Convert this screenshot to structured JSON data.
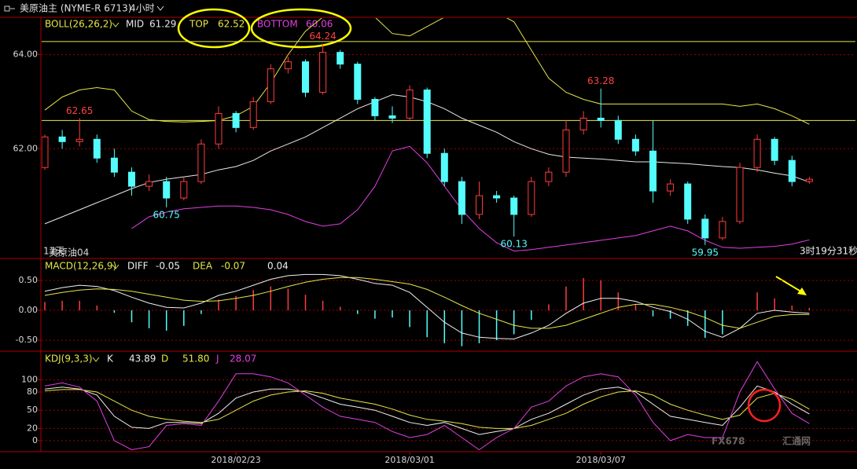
{
  "header": {
    "symbol": "美原油主 (NYME-R 6713)",
    "period": "4小时"
  },
  "footer": {
    "days": "17天",
    "contract": "美原油04",
    "countdown": "3时19分31秒",
    "watermark": "FX678",
    "watermark_cn": "汇通网"
  },
  "chart_data": [
    {
      "type": "candlestick",
      "indicator": "BOLL(26,26,2)",
      "categories": [
        null,
        null,
        null,
        null,
        null,
        null,
        null,
        null,
        null,
        null,
        null,
        "2018/02/23",
        null,
        null,
        null,
        null,
        null,
        null,
        null,
        null,
        null,
        "2018/03/01",
        null,
        null,
        null,
        null,
        null,
        null,
        null,
        null,
        null,
        null,
        "2018/03/07",
        null,
        null,
        null,
        null,
        null,
        null,
        null,
        null,
        null,
        null,
        null,
        null
      ],
      "open": [
        61.6,
        62.25,
        62.15,
        62.2,
        61.8,
        61.5,
        61.2,
        61.3,
        60.95,
        61.3,
        62.1,
        62.75,
        62.45,
        63.0,
        63.7,
        63.85,
        63.2,
        64.05,
        63.8,
        63.05,
        62.7,
        62.65,
        63.25,
        61.9,
        61.3,
        60.6,
        61.0,
        60.95,
        60.6,
        61.3,
        61.5,
        62.4,
        62.65,
        62.6,
        62.2,
        61.95,
        61.1,
        61.25,
        60.5,
        60.1,
        60.45,
        61.6,
        62.2,
        61.75,
        61.3
      ],
      "high": [
        62.3,
        62.4,
        62.65,
        62.3,
        62.0,
        61.6,
        61.45,
        61.4,
        61.4,
        62.2,
        62.9,
        62.8,
        63.1,
        63.8,
        63.95,
        63.9,
        64.24,
        64.1,
        63.85,
        63.1,
        62.9,
        63.35,
        63.3,
        62.0,
        61.4,
        61.3,
        61.1,
        61.0,
        61.4,
        61.6,
        62.6,
        62.8,
        63.28,
        62.7,
        62.3,
        62.6,
        61.35,
        61.3,
        60.6,
        60.55,
        61.7,
        62.3,
        62.25,
        61.85,
        61.4
      ],
      "low": [
        61.55,
        62.0,
        62.05,
        61.7,
        61.4,
        61.0,
        61.1,
        60.75,
        60.9,
        61.25,
        62.0,
        62.35,
        62.4,
        62.95,
        63.6,
        63.1,
        63.15,
        63.7,
        62.95,
        62.6,
        62.55,
        62.6,
        61.8,
        61.2,
        60.4,
        60.5,
        60.85,
        60.13,
        60.55,
        61.2,
        61.4,
        62.3,
        62.45,
        62.1,
        61.85,
        60.85,
        61.0,
        60.4,
        59.95,
        60.05,
        60.4,
        61.5,
        61.65,
        61.2,
        61.25
      ],
      "close": [
        62.25,
        62.15,
        62.2,
        61.8,
        61.5,
        61.2,
        61.3,
        60.95,
        61.3,
        62.1,
        62.75,
        62.45,
        63.0,
        63.7,
        63.85,
        63.2,
        64.05,
        63.8,
        63.05,
        62.7,
        62.65,
        63.25,
        61.9,
        61.3,
        60.6,
        61.0,
        60.95,
        60.6,
        61.3,
        61.5,
        62.4,
        62.65,
        62.6,
        62.2,
        61.95,
        61.1,
        61.25,
        60.5,
        60.1,
        60.45,
        61.6,
        62.2,
        61.75,
        61.3,
        61.35
      ],
      "series": [
        {
          "name": "MID",
          "color": "#e8e8e8",
          "values": [
            60.4,
            60.55,
            60.7,
            60.85,
            61.0,
            61.15,
            61.28,
            61.35,
            61.4,
            61.45,
            61.55,
            61.62,
            61.75,
            61.95,
            62.1,
            62.25,
            62.45,
            62.65,
            62.85,
            63.0,
            63.15,
            63.1,
            63.0,
            62.85,
            62.65,
            62.5,
            62.35,
            62.15,
            62.0,
            61.88,
            61.82,
            61.8,
            61.78,
            61.75,
            61.72,
            61.72,
            61.7,
            61.68,
            61.65,
            61.62,
            61.6,
            61.55,
            61.48,
            61.42,
            61.29
          ]
        },
        {
          "name": "TOP",
          "color": "#e6e64a",
          "values": [
            62.82,
            63.1,
            63.25,
            63.3,
            63.25,
            62.8,
            62.62,
            62.58,
            62.57,
            62.58,
            62.6,
            62.7,
            62.9,
            63.4,
            64.0,
            64.5,
            64.8,
            64.9,
            64.9,
            64.8,
            64.45,
            64.4,
            64.6,
            64.8,
            64.9,
            64.9,
            64.9,
            64.7,
            64.1,
            63.5,
            63.2,
            63.05,
            62.95,
            62.95,
            62.95,
            62.95,
            62.95,
            62.95,
            62.95,
            62.95,
            62.9,
            62.95,
            62.85,
            62.7,
            62.52
          ]
        },
        {
          "name": "BOTTOM",
          "color": "#e040e0",
          "values": [
            null,
            null,
            null,
            null,
            null,
            60.3,
            60.55,
            60.65,
            60.72,
            60.75,
            60.78,
            60.78,
            60.75,
            60.7,
            60.6,
            60.45,
            60.35,
            60.4,
            60.7,
            61.2,
            61.95,
            62.05,
            61.7,
            61.2,
            60.7,
            60.3,
            60.0,
            59.82,
            59.85,
            59.9,
            59.95,
            60.0,
            60.05,
            60.1,
            60.15,
            60.25,
            60.35,
            60.25,
            60.05,
            59.9,
            59.88,
            59.9,
            59.92,
            59.97,
            60.06
          ]
        }
      ],
      "hlines": [
        64.28,
        62.6
      ],
      "high_labels": [
        62.65,
        64.24,
        63.28
      ],
      "low_labels": [
        60.75,
        60.13,
        59.95
      ],
      "up_color": "#ff3c3c",
      "down_color": "#54fcfc",
      "ylim": [
        59.68,
        64.78
      ],
      "yticks": [
        {
          "value": 62,
          "label": "62.00"
        },
        {
          "value": 64,
          "label": "64.00"
        }
      ],
      "grid": true
    },
    {
      "type": "combo",
      "indicator": "MACD(12,26,9)",
      "series": [
        {
          "name": "DIFF",
          "color": "#f0f0f0",
          "values": [
            0.32,
            0.38,
            0.42,
            0.4,
            0.33,
            0.22,
            0.12,
            0.05,
            0.04,
            0.12,
            0.25,
            0.32,
            0.42,
            0.52,
            0.58,
            0.6,
            0.6,
            0.58,
            0.52,
            0.45,
            0.42,
            0.3,
            0.05,
            -0.2,
            -0.38,
            -0.45,
            -0.47,
            -0.48,
            -0.38,
            -0.25,
            -0.05,
            0.12,
            0.2,
            0.2,
            0.15,
            0.05,
            -0.02,
            -0.15,
            -0.35,
            -0.45,
            -0.3,
            -0.05,
            0.0,
            -0.03,
            -0.05
          ]
        },
        {
          "name": "DEA",
          "color": "#e6e64a",
          "values": [
            0.25,
            0.3,
            0.34,
            0.36,
            0.35,
            0.32,
            0.27,
            0.22,
            0.17,
            0.15,
            0.16,
            0.2,
            0.25,
            0.32,
            0.4,
            0.47,
            0.52,
            0.55,
            0.55,
            0.52,
            0.48,
            0.44,
            0.35,
            0.22,
            0.08,
            -0.05,
            -0.15,
            -0.25,
            -0.3,
            -0.3,
            -0.25,
            -0.15,
            -0.05,
            0.05,
            0.1,
            0.1,
            0.05,
            -0.02,
            -0.12,
            -0.25,
            -0.3,
            -0.2,
            -0.1,
            -0.07,
            -0.07
          ]
        }
      ],
      "histogram": {
        "values": [
          0.14,
          0.16,
          0.16,
          0.08,
          -0.04,
          -0.2,
          -0.3,
          -0.34,
          -0.26,
          -0.06,
          0.18,
          0.24,
          0.34,
          0.4,
          0.36,
          0.26,
          0.16,
          0.06,
          -0.06,
          -0.14,
          -0.12,
          -0.28,
          -0.45,
          -0.55,
          -0.6,
          -0.55,
          -0.5,
          -0.4,
          -0.16,
          0.1,
          0.4,
          0.54,
          0.5,
          0.3,
          0.1,
          -0.1,
          -0.14,
          -0.26,
          -0.46,
          -0.4,
          0.0,
          0.3,
          0.2,
          0.08,
          0.04
        ],
        "up_color": "#ff3c3c",
        "down_color": "#54fcfc"
      },
      "ylim": [
        -0.67,
        0.855
      ],
      "yticks": [
        {
          "value": 0.5,
          "label": "0.50"
        },
        {
          "value": 0,
          "label": "0.00"
        },
        {
          "value": -0.5,
          "label": "-0.50"
        }
      ],
      "grid": true
    },
    {
      "type": "line",
      "indicator": "KDJ(9,3,3)",
      "series": [
        {
          "name": "K",
          "color": "#f0f0f0",
          "values": [
            85,
            88,
            85,
            75,
            40,
            22,
            20,
            30,
            30,
            28,
            45,
            70,
            80,
            85,
            85,
            80,
            70,
            60,
            55,
            50,
            40,
            30,
            25,
            30,
            20,
            10,
            15,
            20,
            35,
            45,
            60,
            75,
            85,
            88,
            80,
            60,
            40,
            35,
            30,
            25,
            55,
            90,
            80,
            60,
            43.89
          ]
        },
        {
          "name": "D",
          "color": "#e6e64a",
          "values": [
            82,
            84,
            84,
            80,
            65,
            50,
            40,
            35,
            32,
            30,
            35,
            50,
            65,
            75,
            80,
            82,
            78,
            70,
            65,
            60,
            52,
            42,
            35,
            32,
            28,
            22,
            20,
            20,
            25,
            35,
            45,
            60,
            72,
            80,
            82,
            75,
            60,
            50,
            42,
            35,
            42,
            70,
            78,
            68,
            51.8
          ],
          "value_labels": [
            null,
            null,
            null,
            null,
            null,
            null,
            null,
            null,
            null,
            null,
            null,
            null,
            null,
            null,
            null,
            null,
            null,
            null,
            null,
            null,
            null,
            null,
            null,
            null,
            null,
            null,
            null,
            null,
            null,
            null,
            null,
            null,
            null,
            null,
            null,
            null,
            null,
            null,
            null,
            null,
            null,
            null,
            null,
            null,
            "51.80"
          ]
        },
        {
          "name": "J",
          "color": "#e040e0",
          "values": [
            90,
            95,
            88,
            65,
            0,
            -15,
            -10,
            25,
            28,
            25,
            65,
            110,
            110,
            105,
            95,
            75,
            55,
            40,
            35,
            30,
            15,
            5,
            10,
            25,
            5,
            -15,
            5,
            20,
            55,
            65,
            90,
            105,
            110,
            105,
            75,
            30,
            0,
            10,
            5,
            5,
            80,
            130,
            85,
            45,
            28.07
          ]
        }
      ],
      "ylim": [
        -17,
        146
      ],
      "yticks": [
        100,
        80,
        50,
        20,
        0
      ],
      "grid": true
    }
  ]
}
